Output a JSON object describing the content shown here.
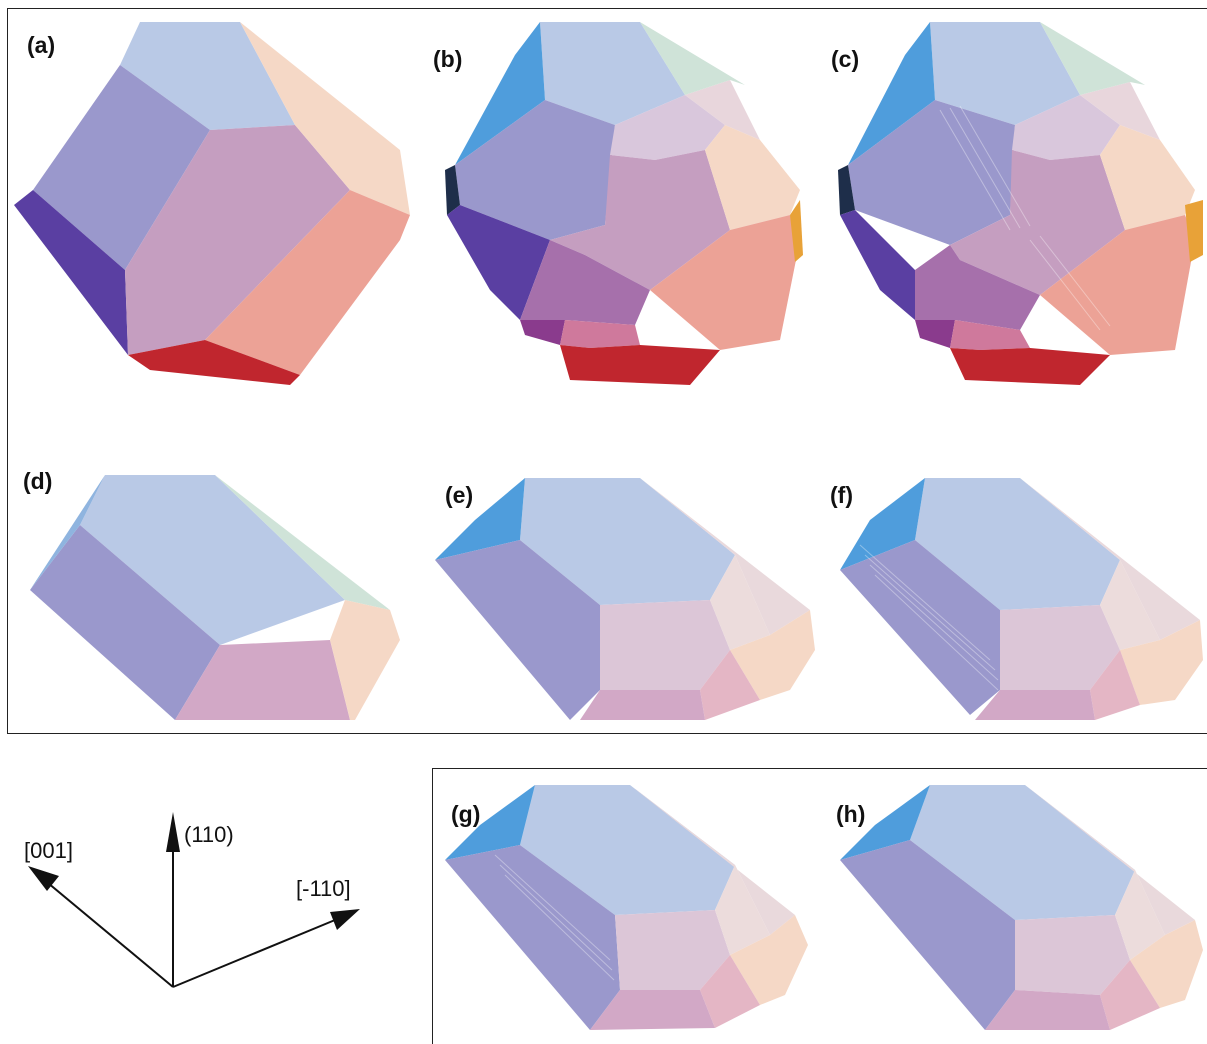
{
  "panels": [
    {
      "id": "a",
      "label": "(a)"
    },
    {
      "id": "b",
      "label": "(b)"
    },
    {
      "id": "c",
      "label": "(c)"
    },
    {
      "id": "d",
      "label": "(d)"
    },
    {
      "id": "e",
      "label": "(e)"
    },
    {
      "id": "f",
      "label": "(f)"
    },
    {
      "id": "g",
      "label": "(g)"
    },
    {
      "id": "h",
      "label": "(h)"
    }
  ],
  "axes": {
    "up": "(110)",
    "left": "[001]",
    "right": "[-110]"
  },
  "colors": {
    "top_face": "#b9c9e6",
    "left_face": "#9a98cc",
    "dark_left": "#5a3fa2",
    "center_face": "#c59ec0",
    "right_upper": "#f5d8c6",
    "right_lower": "#eca296",
    "bottom_red": "#c0262e",
    "small_light": "#d9c7dc",
    "magenta_small": "#a670ab",
    "bottom_pink": "#cf799c",
    "blue_edge": "#4f9ddc",
    "orange_edge": "#e8a238"
  }
}
